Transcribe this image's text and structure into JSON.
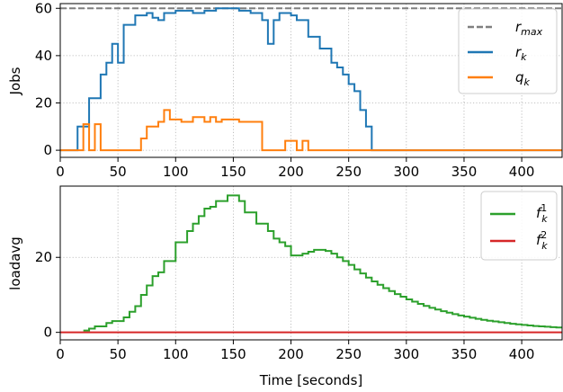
{
  "chart_data": [
    {
      "type": "line",
      "step": true,
      "xlim": [
        0,
        435
      ],
      "ylim": [
        -3,
        62
      ],
      "ylabel": "Jobs",
      "grid": true,
      "legend_position": "top-right",
      "xticks": [
        "0",
        "50",
        "100",
        "150",
        "200",
        "250",
        "300",
        "350",
        "400"
      ],
      "yticks": [
        "0",
        "20",
        "40",
        "60"
      ],
      "series": [
        {
          "name": "r_max",
          "legend": "r_max",
          "color": "#7f7f7f",
          "dash": true,
          "points": [
            [
              0,
              60
            ],
            [
              435,
              60
            ]
          ]
        },
        {
          "name": "r_k",
          "legend": "r_k",
          "color": "#1f77b4",
          "points": [
            [
              0,
              0
            ],
            [
              15,
              0
            ],
            [
              15,
              10
            ],
            [
              25,
              10
            ],
            [
              25,
              22
            ],
            [
              35,
              22
            ],
            [
              35,
              32
            ],
            [
              40,
              32
            ],
            [
              40,
              37
            ],
            [
              45,
              37
            ],
            [
              45,
              45
            ],
            [
              50,
              45
            ],
            [
              50,
              37
            ],
            [
              55,
              37
            ],
            [
              55,
              53
            ],
            [
              65,
              53
            ],
            [
              65,
              57
            ],
            [
              75,
              57
            ],
            [
              75,
              58
            ],
            [
              80,
              58
            ],
            [
              80,
              56
            ],
            [
              85,
              56
            ],
            [
              85,
              55
            ],
            [
              90,
              55
            ],
            [
              90,
              58
            ],
            [
              100,
              58
            ],
            [
              100,
              59
            ],
            [
              115,
              59
            ],
            [
              115,
              58
            ],
            [
              125,
              58
            ],
            [
              125,
              59
            ],
            [
              135,
              59
            ],
            [
              135,
              60
            ],
            [
              155,
              60
            ],
            [
              155,
              59
            ],
            [
              165,
              59
            ],
            [
              165,
              58
            ],
            [
              175,
              58
            ],
            [
              175,
              55
            ],
            [
              180,
              55
            ],
            [
              180,
              45
            ],
            [
              185,
              45
            ],
            [
              185,
              55
            ],
            [
              190,
              55
            ],
            [
              190,
              58
            ],
            [
              200,
              58
            ],
            [
              200,
              57
            ],
            [
              205,
              57
            ],
            [
              205,
              55
            ],
            [
              215,
              55
            ],
            [
              215,
              48
            ],
            [
              225,
              48
            ],
            [
              225,
              43
            ],
            [
              235,
              43
            ],
            [
              235,
              37
            ],
            [
              240,
              37
            ],
            [
              240,
              35
            ],
            [
              245,
              35
            ],
            [
              245,
              32
            ],
            [
              250,
              32
            ],
            [
              250,
              28
            ],
            [
              255,
              28
            ],
            [
              255,
              25
            ],
            [
              260,
              25
            ],
            [
              260,
              17
            ],
            [
              265,
              17
            ],
            [
              265,
              10
            ],
            [
              270,
              10
            ],
            [
              270,
              0
            ],
            [
              435,
              0
            ]
          ]
        },
        {
          "name": "q_k",
          "legend": "q_k",
          "color": "#ff7f0e",
          "points": [
            [
              0,
              0
            ],
            [
              20,
              0
            ],
            [
              20,
              11
            ],
            [
              25,
              11
            ],
            [
              25,
              0
            ],
            [
              30,
              0
            ],
            [
              30,
              11
            ],
            [
              35,
              11
            ],
            [
              35,
              0
            ],
            [
              70,
              0
            ],
            [
              70,
              5
            ],
            [
              75,
              5
            ],
            [
              75,
              10
            ],
            [
              85,
              10
            ],
            [
              85,
              12
            ],
            [
              90,
              12
            ],
            [
              90,
              17
            ],
            [
              95,
              17
            ],
            [
              95,
              13
            ],
            [
              105,
              13
            ],
            [
              105,
              12
            ],
            [
              115,
              12
            ],
            [
              115,
              14
            ],
            [
              125,
              14
            ],
            [
              125,
              12
            ],
            [
              130,
              12
            ],
            [
              130,
              14
            ],
            [
              135,
              14
            ],
            [
              135,
              12
            ],
            [
              140,
              12
            ],
            [
              140,
              13
            ],
            [
              155,
              13
            ],
            [
              155,
              12
            ],
            [
              175,
              12
            ],
            [
              175,
              0
            ],
            [
              195,
              0
            ],
            [
              195,
              4
            ],
            [
              205,
              4
            ],
            [
              205,
              0
            ],
            [
              210,
              0
            ],
            [
              210,
              4
            ],
            [
              215,
              4
            ],
            [
              215,
              0
            ],
            [
              435,
              0
            ]
          ]
        }
      ]
    },
    {
      "type": "line",
      "step": true,
      "xlim": [
        0,
        435
      ],
      "ylim": [
        -2,
        39
      ],
      "xlabel": "Time [seconds]",
      "ylabel": "loadavg",
      "grid": true,
      "legend_position": "top-right",
      "xticks": [
        "0",
        "50",
        "100",
        "150",
        "200",
        "250",
        "300",
        "350",
        "400"
      ],
      "yticks": [
        "0",
        "20"
      ],
      "series": [
        {
          "name": "f_k^1",
          "legend_base": "f",
          "legend_sub": "k",
          "legend_sup": "1",
          "color": "#2ca02c",
          "points": [
            [
              20,
              0.5
            ],
            [
              25,
              0.5
            ],
            [
              25,
              1
            ],
            [
              30,
              1
            ],
            [
              30,
              1.6
            ],
            [
              40,
              1.6
            ],
            [
              40,
              2.5
            ],
            [
              45,
              2.5
            ],
            [
              45,
              3
            ],
            [
              55,
              3
            ],
            [
              55,
              4
            ],
            [
              60,
              4
            ],
            [
              60,
              5.5
            ],
            [
              65,
              5.5
            ],
            [
              65,
              7
            ],
            [
              70,
              7
            ],
            [
              70,
              10
            ],
            [
              75,
              10
            ],
            [
              75,
              12.5
            ],
            [
              80,
              12.5
            ],
            [
              80,
              15
            ],
            [
              85,
              15
            ],
            [
              85,
              16
            ],
            [
              90,
              16
            ],
            [
              90,
              19
            ],
            [
              100,
              19
            ],
            [
              100,
              24
            ],
            [
              110,
              24
            ],
            [
              110,
              27
            ],
            [
              115,
              27
            ],
            [
              115,
              29
            ],
            [
              120,
              29
            ],
            [
              120,
              31
            ],
            [
              125,
              31
            ],
            [
              125,
              33
            ],
            [
              130,
              33
            ],
            [
              130,
              33.5
            ],
            [
              135,
              33.5
            ],
            [
              135,
              35
            ],
            [
              145,
              35
            ],
            [
              145,
              36.5
            ],
            [
              155,
              36.5
            ],
            [
              155,
              35
            ],
            [
              160,
              35
            ],
            [
              160,
              32
            ],
            [
              170,
              32
            ],
            [
              170,
              29
            ],
            [
              180,
              29
            ],
            [
              180,
              27
            ],
            [
              185,
              27
            ],
            [
              185,
              25
            ],
            [
              190,
              25
            ],
            [
              190,
              24
            ],
            [
              195,
              24
            ],
            [
              195,
              23
            ],
            [
              200,
              23
            ],
            [
              200,
              20.5
            ],
            [
              210,
              20.5
            ],
            [
              210,
              21
            ],
            [
              215,
              21
            ],
            [
              215,
              21.5
            ],
            [
              220,
              21.5
            ],
            [
              220,
              22
            ],
            [
              230,
              22
            ],
            [
              230,
              21.7
            ],
            [
              235,
              21.7
            ],
            [
              235,
              21
            ],
            [
              240,
              21
            ],
            [
              240,
              20
            ],
            [
              245,
              20
            ],
            [
              245,
              19
            ],
            [
              250,
              19
            ],
            [
              250,
              18
            ],
            [
              255,
              18
            ],
            [
              255,
              16.8
            ],
            [
              260,
              16.8
            ],
            [
              260,
              15.7
            ],
            [
              265,
              15.7
            ],
            [
              265,
              14.6
            ],
            [
              270,
              14.6
            ],
            [
              270,
              13.6
            ],
            [
              275,
              13.6
            ],
            [
              275,
              12.7
            ],
            [
              280,
              12.7
            ],
            [
              280,
              11.8
            ],
            [
              285,
              11.8
            ],
            [
              285,
              11
            ],
            [
              290,
              11
            ],
            [
              290,
              10.2
            ],
            [
              295,
              10.2
            ],
            [
              295,
              9.5
            ],
            [
              300,
              9.5
            ],
            [
              300,
              8.8
            ],
            [
              305,
              8.8
            ],
            [
              305,
              8.2
            ],
            [
              310,
              8.2
            ],
            [
              310,
              7.6
            ],
            [
              315,
              7.6
            ],
            [
              315,
              7.05
            ],
            [
              320,
              7.05
            ],
            [
              320,
              6.55
            ],
            [
              325,
              6.55
            ],
            [
              325,
              6.1
            ],
            [
              330,
              6.1
            ],
            [
              330,
              5.65
            ],
            [
              335,
              5.65
            ],
            [
              335,
              5.25
            ],
            [
              340,
              5.25
            ],
            [
              340,
              4.85
            ],
            [
              345,
              4.85
            ],
            [
              345,
              4.5
            ],
            [
              350,
              4.5
            ],
            [
              350,
              4.2
            ],
            [
              355,
              4.2
            ],
            [
              355,
              3.9
            ],
            [
              360,
              3.9
            ],
            [
              360,
              3.6
            ],
            [
              365,
              3.6
            ],
            [
              365,
              3.35
            ],
            [
              370,
              3.35
            ],
            [
              370,
              3.1
            ],
            [
              375,
              3.1
            ],
            [
              375,
              2.9
            ],
            [
              380,
              2.9
            ],
            [
              380,
              2.7
            ],
            [
              385,
              2.7
            ],
            [
              385,
              2.5
            ],
            [
              390,
              2.5
            ],
            [
              390,
              2.3
            ],
            [
              395,
              2.3
            ],
            [
              395,
              2.15
            ],
            [
              400,
              2.15
            ],
            [
              400,
              2
            ],
            [
              405,
              2
            ],
            [
              405,
              1.85
            ],
            [
              410,
              1.85
            ],
            [
              410,
              1.7
            ],
            [
              415,
              1.7
            ],
            [
              415,
              1.6
            ],
            [
              420,
              1.6
            ],
            [
              420,
              1.5
            ],
            [
              425,
              1.5
            ],
            [
              425,
              1.4
            ],
            [
              430,
              1.4
            ],
            [
              430,
              1.3
            ],
            [
              435,
              1.3
            ]
          ]
        },
        {
          "name": "f_k^2",
          "legend_base": "f",
          "legend_sub": "k",
          "legend_sup": "2",
          "color": "#d62728",
          "points": [
            [
              0,
              0
            ],
            [
              435,
              0
            ]
          ]
        }
      ]
    }
  ],
  "legend1": {
    "rmax_base": "r",
    "rmax_sub": "max",
    "rk_base": "r",
    "rk_sub": "k",
    "qk_base": "q",
    "qk_sub": "k"
  },
  "legend2": {
    "f1_base": "f",
    "f1_sub": "k",
    "f1_sup": "1",
    "f2_base": "f",
    "f2_sub": "k",
    "f2_sup": "2"
  }
}
